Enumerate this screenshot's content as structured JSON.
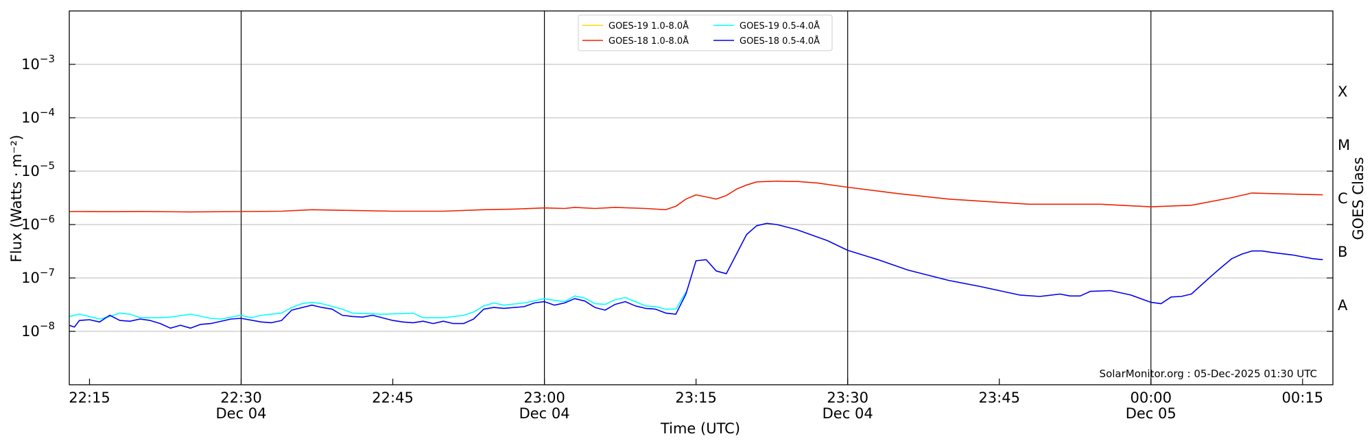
{
  "chart_data": {
    "type": "line",
    "xlabel": "Time (UTC)",
    "ylabel": "Flux (Watts · m⁻²)",
    "y2label": "GOES Class",
    "yscale": "log",
    "ylim": [
      1e-09,
      0.01
    ],
    "xlim": [
      "2025-12-04T22:13",
      "2025-12-05T00:18"
    ],
    "grid": "horizontal",
    "legend_position": "top-center",
    "credit": "SolarMonitor.org : 05-Dec-2025 01:30 UTC",
    "y_ticks": [
      {
        "value": 1e-08,
        "base": "10",
        "exp": "−8"
      },
      {
        "value": 1e-07,
        "base": "10",
        "exp": "−7"
      },
      {
        "value": 1e-06,
        "base": "10",
        "exp": "−6"
      },
      {
        "value": 1e-05,
        "base": "10",
        "exp": "−5"
      },
      {
        "value": 0.0001,
        "base": "10",
        "exp": "−4"
      },
      {
        "value": 0.001,
        "base": "10",
        "exp": "−3"
      }
    ],
    "x_ticks": [
      {
        "t": "2025-12-04T22:15",
        "line1": "22:15",
        "line2": ""
      },
      {
        "t": "2025-12-04T22:30",
        "line1": "22:30",
        "line2": "Dec 04"
      },
      {
        "t": "2025-12-04T22:45",
        "line1": "22:45",
        "line2": ""
      },
      {
        "t": "2025-12-04T23:00",
        "line1": "23:00",
        "line2": "Dec 04"
      },
      {
        "t": "2025-12-04T23:15",
        "line1": "23:15",
        "line2": ""
      },
      {
        "t": "2025-12-04T23:30",
        "line1": "23:30",
        "line2": "Dec 04"
      },
      {
        "t": "2025-12-04T23:45",
        "line1": "23:45",
        "line2": ""
      },
      {
        "t": "2025-12-05T00:00",
        "line1": "00:00",
        "line2": "Dec 05"
      },
      {
        "t": "2025-12-05T00:15",
        "line1": "00:15",
        "line2": ""
      }
    ],
    "vertical_lines": [
      "2025-12-04T22:30",
      "2025-12-04T23:00",
      "2025-12-04T23:30",
      "2025-12-05T00:00"
    ],
    "goes_classes": [
      {
        "label": "A",
        "value": 3.16e-08
      },
      {
        "label": "B",
        "value": 3.16e-07
      },
      {
        "label": "C",
        "value": 3.16e-06
      },
      {
        "label": "M",
        "value": 3.16e-05
      },
      {
        "label": "X",
        "value": 0.000316
      }
    ],
    "legend": [
      {
        "name": "GOES-19 1.0-8.0Å",
        "color": "#FFD700"
      },
      {
        "name": "GOES-19 0.5-4.0Å",
        "color": "#00FFFF"
      },
      {
        "name": "GOES-18 1.0-8.0Å",
        "color": "#EE2200"
      },
      {
        "name": "GOES-18 0.5-4.0Å",
        "color": "#0000EE"
      }
    ],
    "series": [
      {
        "name": "GOES-18 1.0-8.0Å",
        "color": "#EE2200",
        "points": [
          [
            "2025-12-04T22:13",
            1.75e-06
          ],
          [
            "2025-12-04T22:17",
            1.74e-06
          ],
          [
            "2025-12-04T22:20",
            1.76e-06
          ],
          [
            "2025-12-04T22:25",
            1.72e-06
          ],
          [
            "2025-12-04T22:30",
            1.75e-06
          ],
          [
            "2025-12-04T22:34",
            1.78e-06
          ],
          [
            "2025-12-04T22:37",
            1.9e-06
          ],
          [
            "2025-12-04T22:40",
            1.85e-06
          ],
          [
            "2025-12-04T22:45",
            1.78e-06
          ],
          [
            "2025-12-04T22:50",
            1.78e-06
          ],
          [
            "2025-12-04T22:54",
            1.9e-06
          ],
          [
            "2025-12-04T22:57",
            1.95e-06
          ],
          [
            "2025-12-04T23:00",
            2.05e-06
          ],
          [
            "2025-12-04T23:02",
            2e-06
          ],
          [
            "2025-12-04T23:03",
            2.1e-06
          ],
          [
            "2025-12-04T23:05",
            2e-06
          ],
          [
            "2025-12-04T23:07",
            2.1e-06
          ],
          [
            "2025-12-04T23:10",
            2e-06
          ],
          [
            "2025-12-04T23:12",
            1.9e-06
          ],
          [
            "2025-12-04T23:13",
            2.2e-06
          ],
          [
            "2025-12-04T23:14",
            3e-06
          ],
          [
            "2025-12-04T23:15",
            3.6e-06
          ],
          [
            "2025-12-04T23:16",
            3.3e-06
          ],
          [
            "2025-12-04T23:17",
            3e-06
          ],
          [
            "2025-12-04T23:18",
            3.5e-06
          ],
          [
            "2025-12-04T23:19",
            4.6e-06
          ],
          [
            "2025-12-04T23:20",
            5.5e-06
          ],
          [
            "2025-12-04T23:21",
            6.3e-06
          ],
          [
            "2025-12-04T23:23",
            6.5e-06
          ],
          [
            "2025-12-04T23:25",
            6.4e-06
          ],
          [
            "2025-12-04T23:27",
            6e-06
          ],
          [
            "2025-12-04T23:30",
            5e-06
          ],
          [
            "2025-12-04T23:35",
            3.8e-06
          ],
          [
            "2025-12-04T23:40",
            3e-06
          ],
          [
            "2025-12-04T23:45",
            2.6e-06
          ],
          [
            "2025-12-04T23:48",
            2.4e-06
          ],
          [
            "2025-12-04T23:55",
            2.4e-06
          ],
          [
            "2025-12-05T00:00",
            2.15e-06
          ],
          [
            "2025-12-05T00:04",
            2.3e-06
          ],
          [
            "2025-12-05T00:08",
            3.2e-06
          ],
          [
            "2025-12-05T00:10",
            3.9e-06
          ],
          [
            "2025-12-05T00:12",
            3.8e-06
          ],
          [
            "2025-12-05T00:17",
            3.6e-06
          ]
        ]
      },
      {
        "name": "GOES-18 0.5-4.0Å",
        "color": "#0000EE",
        "points": [
          [
            "2025-12-04T22:13",
            1.3e-08
          ],
          [
            "2025-12-04T22:13.5",
            1.2e-08
          ],
          [
            "2025-12-04T22:14",
            1.6e-08
          ],
          [
            "2025-12-04T22:15",
            1.65e-08
          ],
          [
            "2025-12-04T22:16",
            1.5e-08
          ],
          [
            "2025-12-04T22:17",
            2e-08
          ],
          [
            "2025-12-04T22:18",
            1.6e-08
          ],
          [
            "2025-12-04T22:19",
            1.55e-08
          ],
          [
            "2025-12-04T22:20",
            1.7e-08
          ],
          [
            "2025-12-04T22:21",
            1.6e-08
          ],
          [
            "2025-12-04T22:22",
            1.4e-08
          ],
          [
            "2025-12-04T22:23",
            1.15e-08
          ],
          [
            "2025-12-04T22:24",
            1.3e-08
          ],
          [
            "2025-12-04T22:25",
            1.15e-08
          ],
          [
            "2025-12-04T22:26",
            1.35e-08
          ],
          [
            "2025-12-04T22:27",
            1.4e-08
          ],
          [
            "2025-12-04T22:29",
            1.7e-08
          ],
          [
            "2025-12-04T22:30",
            1.75e-08
          ],
          [
            "2025-12-04T22:32",
            1.5e-08
          ],
          [
            "2025-12-04T22:33",
            1.45e-08
          ],
          [
            "2025-12-04T22:34",
            1.6e-08
          ],
          [
            "2025-12-04T22:35",
            2.5e-08
          ],
          [
            "2025-12-04T22:37",
            3.1e-08
          ],
          [
            "2025-12-04T22:38",
            2.8e-08
          ],
          [
            "2025-12-04T22:39",
            2.6e-08
          ],
          [
            "2025-12-04T22:40",
            2e-08
          ],
          [
            "2025-12-04T22:41",
            1.9e-08
          ],
          [
            "2025-12-04T22:42",
            1.85e-08
          ],
          [
            "2025-12-04T22:43",
            2e-08
          ],
          [
            "2025-12-04T22:45",
            1.6e-08
          ],
          [
            "2025-12-04T22:46",
            1.5e-08
          ],
          [
            "2025-12-04T22:47",
            1.45e-08
          ],
          [
            "2025-12-04T22:48",
            1.55e-08
          ],
          [
            "2025-12-04T22:49",
            1.4e-08
          ],
          [
            "2025-12-04T22:50",
            1.55e-08
          ],
          [
            "2025-12-04T22:51",
            1.4e-08
          ],
          [
            "2025-12-04T22:52",
            1.4e-08
          ],
          [
            "2025-12-04T22:53",
            1.7e-08
          ],
          [
            "2025-12-04T22:54",
            2.6e-08
          ],
          [
            "2025-12-04T22:55",
            2.8e-08
          ],
          [
            "2025-12-04T22:56",
            2.7e-08
          ],
          [
            "2025-12-04T22:58",
            2.9e-08
          ],
          [
            "2025-12-04T22:59",
            3.4e-08
          ],
          [
            "2025-12-04T23:00",
            3.6e-08
          ],
          [
            "2025-12-04T23:01",
            3.1e-08
          ],
          [
            "2025-12-04T23:02",
            3.4e-08
          ],
          [
            "2025-12-04T23:03",
            4.1e-08
          ],
          [
            "2025-12-04T23:04",
            3.7e-08
          ],
          [
            "2025-12-04T23:05",
            2.8e-08
          ],
          [
            "2025-12-04T23:06",
            2.5e-08
          ],
          [
            "2025-12-04T23:07",
            3.2e-08
          ],
          [
            "2025-12-04T23:08",
            3.6e-08
          ],
          [
            "2025-12-04T23:09",
            3e-08
          ],
          [
            "2025-12-04T23:10",
            2.7e-08
          ],
          [
            "2025-12-04T23:11",
            2.6e-08
          ],
          [
            "2025-12-04T23:12",
            2.2e-08
          ],
          [
            "2025-12-04T23:13",
            2.1e-08
          ],
          [
            "2025-12-04T23:14",
            5e-08
          ],
          [
            "2025-12-04T23:15",
            2.1e-07
          ],
          [
            "2025-12-04T23:16",
            2.2e-07
          ],
          [
            "2025-12-04T23:17",
            1.35e-07
          ],
          [
            "2025-12-04T23:18",
            1.2e-07
          ],
          [
            "2025-12-04T23:19",
            2.8e-07
          ],
          [
            "2025-12-04T23:20",
            6.5e-07
          ],
          [
            "2025-12-04T23:21",
            9.5e-07
          ],
          [
            "2025-12-04T23:22",
            1.05e-06
          ],
          [
            "2025-12-04T23:23",
            1e-06
          ],
          [
            "2025-12-04T23:25",
            8e-07
          ],
          [
            "2025-12-04T23:28",
            5e-07
          ],
          [
            "2025-12-04T23:30",
            3.3e-07
          ],
          [
            "2025-12-04T23:33",
            2.2e-07
          ],
          [
            "2025-12-04T23:36",
            1.4e-07
          ],
          [
            "2025-12-04T23:40",
            9e-08
          ],
          [
            "2025-12-04T23:43",
            7e-08
          ],
          [
            "2025-12-04T23:45",
            5.8e-08
          ],
          [
            "2025-12-04T23:47",
            4.8e-08
          ],
          [
            "2025-12-04T23:49",
            4.5e-08
          ],
          [
            "2025-12-04T23:51",
            5e-08
          ],
          [
            "2025-12-04T23:52",
            4.6e-08
          ],
          [
            "2025-12-04T23:53",
            4.6e-08
          ],
          [
            "2025-12-04T23:54",
            5.6e-08
          ],
          [
            "2025-12-04T23:56",
            5.8e-08
          ],
          [
            "2025-12-04T23:58",
            4.8e-08
          ],
          [
            "2025-12-05T00:00",
            3.5e-08
          ],
          [
            "2025-12-05T00:01",
            3.3e-08
          ],
          [
            "2025-12-05T00:02",
            4.4e-08
          ],
          [
            "2025-12-05T00:03",
            4.5e-08
          ],
          [
            "2025-12-05T00:04",
            5e-08
          ],
          [
            "2025-12-05T00:06",
            1.1e-07
          ],
          [
            "2025-12-05T00:07",
            1.6e-07
          ],
          [
            "2025-12-05T00:08",
            2.3e-07
          ],
          [
            "2025-12-05T00:09",
            2.8e-07
          ],
          [
            "2025-12-05T00:10",
            3.2e-07
          ],
          [
            "2025-12-05T00:11",
            3.2e-07
          ],
          [
            "2025-12-05T00:12",
            3e-07
          ],
          [
            "2025-12-05T00:14",
            2.7e-07
          ],
          [
            "2025-12-05T00:16",
            2.3e-07
          ],
          [
            "2025-12-05T00:17",
            2.2e-07
          ]
        ]
      },
      {
        "name": "GOES-19 0.5-4.0Å",
        "color": "#00FFFF",
        "points": [
          [
            "2025-12-04T22:13",
            1.9e-08
          ],
          [
            "2025-12-04T22:14",
            2.1e-08
          ],
          [
            "2025-12-04T22:15",
            1.9e-08
          ],
          [
            "2025-12-04T22:16",
            1.7e-08
          ],
          [
            "2025-12-04T22:17",
            1.9e-08
          ],
          [
            "2025-12-04T22:18",
            2.2e-08
          ],
          [
            "2025-12-04T22:19",
            2.1e-08
          ],
          [
            "2025-12-04T22:20",
            1.8e-08
          ],
          [
            "2025-12-04T22:22",
            1.8e-08
          ],
          [
            "2025-12-04T22:23",
            1.85e-08
          ],
          [
            "2025-12-04T22:25",
            2.1e-08
          ],
          [
            "2025-12-04T22:27",
            1.75e-08
          ],
          [
            "2025-12-04T22:28",
            1.7e-08
          ],
          [
            "2025-12-04T22:30",
            2e-08
          ],
          [
            "2025-12-04T22:31",
            1.8e-08
          ],
          [
            "2025-12-04T22:32",
            2e-08
          ],
          [
            "2025-12-04T22:34",
            2.2e-08
          ],
          [
            "2025-12-04T22:35",
            2.8e-08
          ],
          [
            "2025-12-04T22:36",
            3.3e-08
          ],
          [
            "2025-12-04T22:37",
            3.5e-08
          ],
          [
            "2025-12-04T22:38",
            3.3e-08
          ],
          [
            "2025-12-04T22:40",
            2.6e-08
          ],
          [
            "2025-12-04T22:41",
            2.2e-08
          ],
          [
            "2025-12-04T22:44",
            2.1e-08
          ],
          [
            "2025-12-04T22:46",
            2.15e-08
          ],
          [
            "2025-12-04T22:47",
            2.2e-08
          ],
          [
            "2025-12-04T22:48",
            1.8e-08
          ],
          [
            "2025-12-04T22:50",
            1.8e-08
          ],
          [
            "2025-12-04T22:52",
            2e-08
          ],
          [
            "2025-12-04T22:53",
            2.3e-08
          ],
          [
            "2025-12-04T22:54",
            3e-08
          ],
          [
            "2025-12-04T22:55",
            3.4e-08
          ],
          [
            "2025-12-04T22:56",
            3.1e-08
          ],
          [
            "2025-12-04T22:58",
            3.4e-08
          ],
          [
            "2025-12-04T23:00",
            4.1e-08
          ],
          [
            "2025-12-04T23:01",
            3.8e-08
          ],
          [
            "2025-12-04T23:02",
            3.6e-08
          ],
          [
            "2025-12-04T23:03",
            4.6e-08
          ],
          [
            "2025-12-04T23:04",
            4.2e-08
          ],
          [
            "2025-12-04T23:05",
            3.3e-08
          ],
          [
            "2025-12-04T23:06",
            3.2e-08
          ],
          [
            "2025-12-04T23:07",
            3.9e-08
          ],
          [
            "2025-12-04T23:08",
            4.3e-08
          ],
          [
            "2025-12-04T23:09",
            3.6e-08
          ],
          [
            "2025-12-04T23:10",
            3e-08
          ],
          [
            "2025-12-04T23:11",
            2.9e-08
          ],
          [
            "2025-12-04T23:12",
            2.6e-08
          ],
          [
            "2025-12-04T23:13",
            2.6e-08
          ],
          [
            "2025-12-04T23:14",
            5.5e-08
          ]
        ]
      }
    ]
  }
}
